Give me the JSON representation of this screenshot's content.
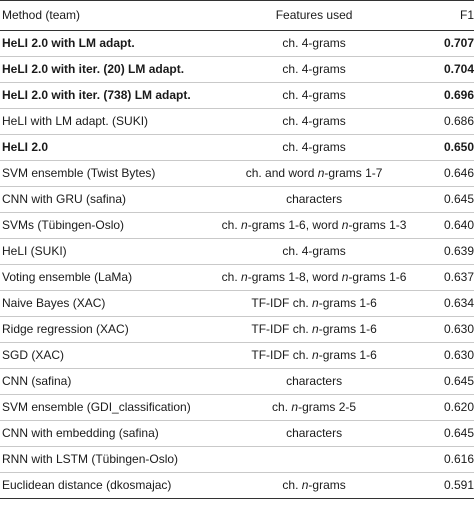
{
  "table": {
    "headers": {
      "method": "Method (team)",
      "features": "Features used",
      "f1": "F1"
    },
    "rows": [
      {
        "method": "HeLI 2.0 with LM adapt.",
        "features": "ch. 4-grams",
        "f1": "0.707",
        "bold": true
      },
      {
        "method": "HeLI 2.0 with iter. (20) LM adapt.",
        "features": "ch. 4-grams",
        "f1": "0.704",
        "bold": true
      },
      {
        "method": "HeLI 2.0 with iter. (738) LM adapt.",
        "features": "ch. 4-grams",
        "f1": "0.696",
        "bold": true
      },
      {
        "method": "HeLI with LM adapt. (SUKI)",
        "features": "ch. 4-grams",
        "f1": "0.686",
        "bold": false
      },
      {
        "method": "HeLI 2.0",
        "features": "ch. 4-grams",
        "f1": "0.650",
        "bold": true
      },
      {
        "method": "SVM ensemble (Twist Bytes)",
        "features": "ch. and word n-grams 1-7",
        "f1": "0.646",
        "bold": false
      },
      {
        "method": "CNN with GRU (safina)",
        "features": "characters",
        "f1": "0.645",
        "bold": false
      },
      {
        "method": "SVMs (Tübingen-Oslo)",
        "features": "ch. n-grams 1-6, word n-grams 1-3",
        "f1": "0.640",
        "bold": false
      },
      {
        "method": "HeLI (SUKI)",
        "features": "ch. 4-grams",
        "f1": "0.639",
        "bold": false
      },
      {
        "method": "Voting ensemble (LaMa)",
        "features": "ch. n-grams 1-8, word n-grams 1-6",
        "f1": "0.637",
        "bold": false
      },
      {
        "method": "Naive Bayes (XAC)",
        "features": "TF-IDF ch. n-grams 1-6",
        "f1": "0.634",
        "bold": false
      },
      {
        "method": "Ridge regression (XAC)",
        "features": "TF-IDF ch. n-grams 1-6",
        "f1": "0.630",
        "bold": false
      },
      {
        "method": "SGD (XAC)",
        "features": "TF-IDF ch. n-grams 1-6",
        "f1": "0.630",
        "bold": false
      },
      {
        "method": "CNN (safina)",
        "features": "characters",
        "f1": "0.645",
        "bold": false
      },
      {
        "method": "SVM ensemble (GDI_classification)",
        "features": "ch. n-grams 2-5",
        "f1": "0.620",
        "bold": false
      },
      {
        "method": "CNN with embedding (safina)",
        "features": "characters",
        "f1": "0.645",
        "bold": false
      },
      {
        "method": "RNN with LSTM (Tübingen-Oslo)",
        "features": "",
        "f1": "0.616",
        "bold": false
      },
      {
        "method": "Euclidean distance (dkosmajac)",
        "features": "ch. n-grams",
        "f1": "0.591",
        "bold": false
      }
    ]
  }
}
